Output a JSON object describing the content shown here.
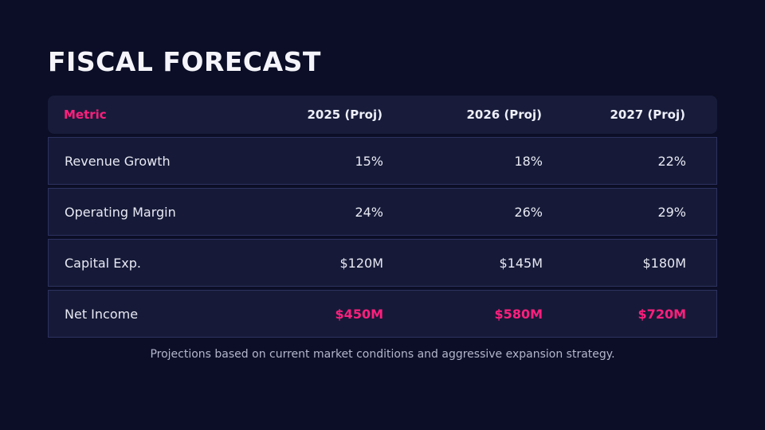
{
  "header": {
    "title": "FISCAL FORECAST"
  },
  "table": {
    "columns": [
      "Metric",
      "2025 (Proj)",
      "2026 (Proj)",
      "2027 (Proj)"
    ],
    "rows": [
      [
        "Revenue Growth",
        "15%",
        "18%",
        "22%"
      ],
      [
        "Operating Margin",
        "24%",
        "26%",
        "29%"
      ],
      [
        "Capital Exp.",
        "$120M",
        "$145M",
        "$180M"
      ],
      [
        "Net Income",
        "$450M",
        "$580M",
        "$720M"
      ]
    ]
  },
  "footnote": "Projections based on current market conditions and aggressive expansion strategy."
}
